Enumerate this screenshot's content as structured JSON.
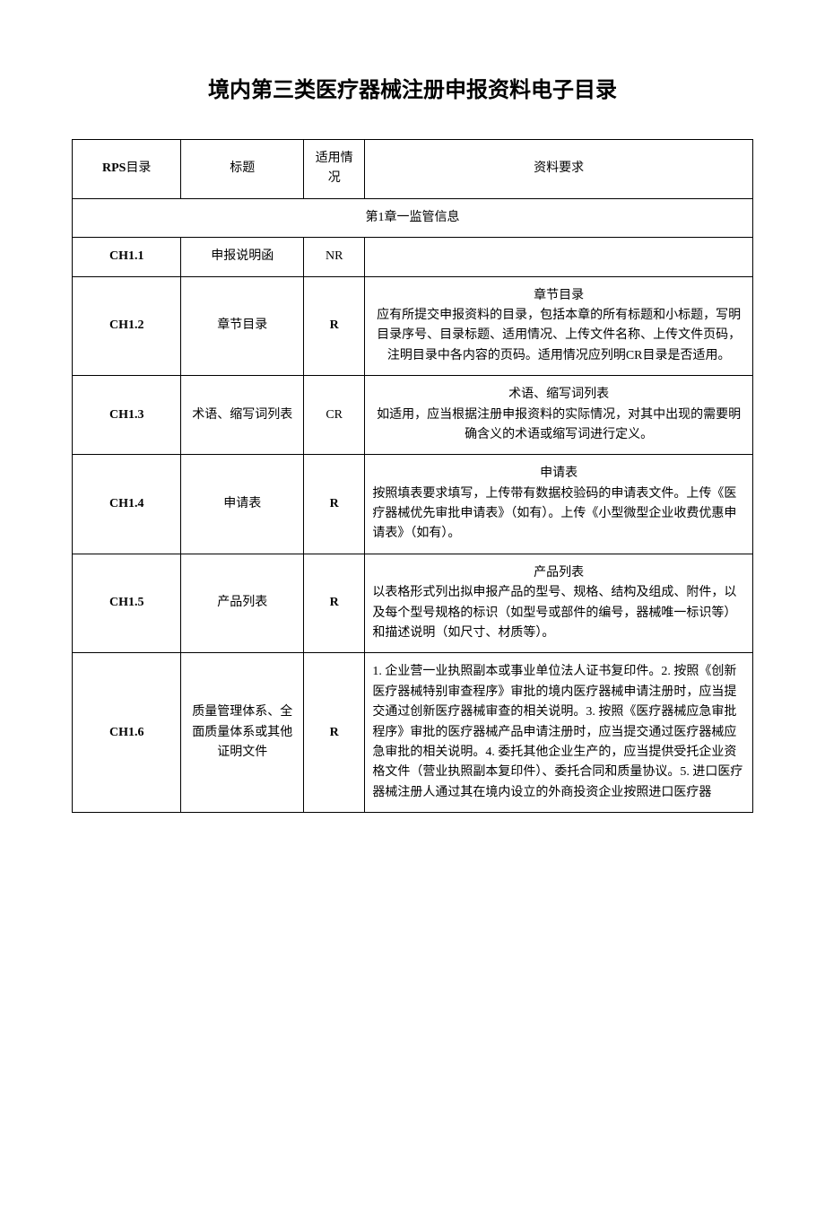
{
  "doc_title": "境内第三类医疗器械注册申报资料电子目录",
  "headers": {
    "rps_prefix": "RPS",
    "rps_suffix": "目录",
    "title": "标题",
    "applicability": "适用情况",
    "requirements": "资料要求"
  },
  "chapter_label": "第1章一监管信息",
  "rows": [
    {
      "rps": "CH1.1",
      "title": "申报说明函",
      "apply": "NR",
      "apply_bold": false,
      "req_heading": "",
      "req_body": ""
    },
    {
      "rps": "CH1.2",
      "title": "章节目录",
      "apply": "R",
      "apply_bold": true,
      "req_heading": "章节目录",
      "req_body": "应有所提交申报资料的目录，包括本章的所有标题和小标题，写明目录序号、目录标题、适用情况、上传文件名称、上传文件页码，注明目录中各内容的页码。适用情况应列明CR目录是否适用。"
    },
    {
      "rps": "CH1.3",
      "title": "术语、缩写词列表",
      "apply": "CR",
      "apply_bold": false,
      "req_heading": "术语、缩写词列表",
      "req_body": "如适用，应当根据注册申报资料的实际情况，对其中出现的需要明确含义的术语或缩写词进行定义。"
    },
    {
      "rps": "CH1.4",
      "title": "申请表",
      "apply": "R",
      "apply_bold": true,
      "req_heading": "申请表",
      "req_body": "按照填表要求填写，上传带有数据校验码的申请表文件。上传《医疗器械优先审批申请表》（如有）。上传《小型微型企业收费优惠申请表》（如有）。"
    },
    {
      "rps": "CH1.5",
      "title": "产品列表",
      "apply": "R",
      "apply_bold": true,
      "req_heading": "产品列表",
      "req_body": "以表格形式列出拟申报产品的型号、规格、结构及组成、附件，以及每个型号规格的标识（如型号或部件的编号，器械唯一标识等）和描述说明（如尺寸、材质等）。"
    },
    {
      "rps": "CH1.6",
      "title": "质量管理体系、全面质量体系或其他证明文件",
      "apply": "R",
      "apply_bold": true,
      "req_heading": "",
      "req_body": "1. 企业营一业执照副本或事业单位法人证书复印件。2. 按照《创新医疗器械特别审查程序》审批的境内医疗器械申请注册时，应当提交通过创新医疗器械审查的相关说明。3. 按照《医疗器械应急审批程序》审批的医疗器械产品申请注册时，应当提交通过医疗器械应急审批的相关说明。4. 委托其他企业生产的，应当提供受托企业资格文件（营业执照副本复印件）、委托合同和质量协议。5. 进口医疗器械注册人通过其在境内设立的外商投资企业按照进口医疗器"
    }
  ]
}
